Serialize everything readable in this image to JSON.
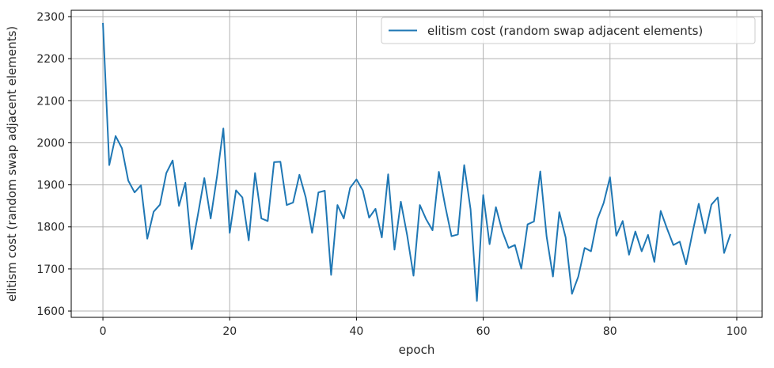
{
  "chart_data": {
    "type": "line",
    "title": "",
    "xlabel": "epoch",
    "ylabel": "elitism cost (random swap adjacent elements)",
    "xlim": [
      -5,
      104
    ],
    "ylim": [
      1585,
      2315
    ],
    "xticks": [
      0,
      20,
      40,
      60,
      80,
      100
    ],
    "yticks": [
      1600,
      1700,
      1800,
      1900,
      2000,
      2100,
      2200,
      2300
    ],
    "grid": true,
    "legend_position": "top-right",
    "series": [
      {
        "name": "elitism cost (random swap adjacent elements)",
        "color": "#1f77b4",
        "x": [
          0,
          1,
          2,
          3,
          4,
          5,
          6,
          7,
          8,
          9,
          10,
          11,
          12,
          13,
          14,
          15,
          16,
          17,
          18,
          19,
          20,
          21,
          22,
          23,
          24,
          25,
          26,
          27,
          28,
          29,
          30,
          31,
          32,
          33,
          34,
          35,
          36,
          37,
          38,
          39,
          40,
          41,
          42,
          43,
          44,
          45,
          46,
          47,
          48,
          49,
          50,
          51,
          52,
          53,
          54,
          55,
          56,
          57,
          58,
          59,
          60,
          61,
          62,
          63,
          64,
          65,
          66,
          67,
          68,
          69,
          70,
          71,
          72,
          73,
          74,
          75,
          76,
          77,
          78,
          79,
          80,
          81,
          82,
          83,
          84,
          85,
          86,
          87,
          88,
          89,
          90,
          91,
          92,
          93,
          94,
          95,
          96,
          97,
          98,
          99
        ],
        "values": [
          2285,
          1947,
          2016,
          1987,
          1910,
          1882,
          1899,
          1772,
          1836,
          1853,
          1928,
          1958,
          1850,
          1905,
          1747,
          1830,
          1916,
          1820,
          1920,
          2034,
          1786,
          1887,
          1870,
          1768,
          1928,
          1820,
          1814,
          1954,
          1955,
          1852,
          1858,
          1924,
          1870,
          1786,
          1882,
          1886,
          1686,
          1852,
          1820,
          1893,
          1913,
          1887,
          1822,
          1843,
          1775,
          1925,
          1746,
          1860,
          1780,
          1684,
          1852,
          1818,
          1792,
          1931,
          1850,
          1778,
          1782,
          1947,
          1842,
          1624,
          1876,
          1759,
          1847,
          1790,
          1750,
          1757,
          1701,
          1806,
          1813,
          1932,
          1777,
          1682,
          1835,
          1775,
          1641,
          1682,
          1750,
          1742,
          1818,
          1857,
          1918,
          1779,
          1814,
          1734,
          1789,
          1742,
          1781,
          1717,
          1838,
          1796,
          1757,
          1765,
          1711,
          1785,
          1855,
          1785,
          1853,
          1870,
          1738,
          1783
        ]
      }
    ]
  }
}
